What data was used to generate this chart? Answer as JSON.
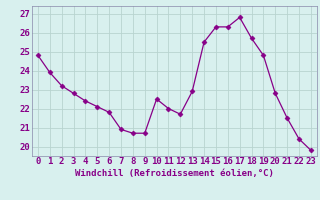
{
  "x": [
    0,
    1,
    2,
    3,
    4,
    5,
    6,
    7,
    8,
    9,
    10,
    11,
    12,
    13,
    14,
    15,
    16,
    17,
    18,
    19,
    20,
    21,
    22,
    23
  ],
  "y": [
    24.8,
    23.9,
    23.2,
    22.8,
    22.4,
    22.1,
    21.8,
    20.9,
    20.7,
    20.7,
    22.5,
    22.0,
    21.7,
    22.9,
    25.5,
    26.3,
    26.3,
    26.8,
    25.7,
    24.8,
    22.8,
    21.5,
    20.4,
    19.8
  ],
  "line_color": "#880088",
  "marker": "D",
  "markersize": 2.5,
  "linewidth": 0.9,
  "bg_color": "#d8f0ee",
  "grid_color": "#b8d4d0",
  "xlabel": "Windchill (Refroidissement éolien,°C)",
  "xlabel_fontsize": 6.5,
  "ylabel_ticks": [
    20,
    21,
    22,
    23,
    24,
    25,
    26,
    27
  ],
  "xtick_labels": [
    "0",
    "1",
    "2",
    "3",
    "4",
    "5",
    "6",
    "7",
    "8",
    "9",
    "10",
    "11",
    "12",
    "13",
    "14",
    "15",
    "16",
    "17",
    "18",
    "19",
    "20",
    "21",
    "22",
    "23"
  ],
  "ylim": [
    19.5,
    27.4
  ],
  "xlim": [
    -0.5,
    23.5
  ],
  "tick_fontsize": 6.5,
  "spine_color": "#8888aa"
}
